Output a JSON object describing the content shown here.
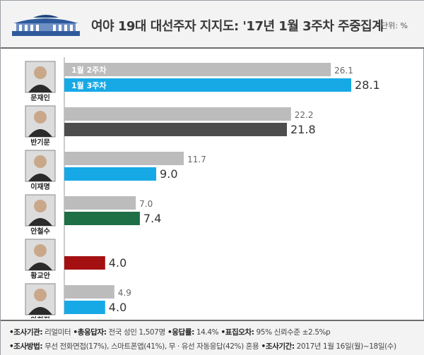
{
  "header": {
    "title": "여야 19대 대선주자 지지도: '17년 1월 3주차 주중집계",
    "unit": "단위: %"
  },
  "chart_data": {
    "type": "bar",
    "orientation": "horizontal",
    "categories": [
      "문재인",
      "반기문",
      "이재명",
      "안철수",
      "황교안",
      "안희정"
    ],
    "series": [
      {
        "name": "1월 2주차",
        "values": [
          26.1,
          22.2,
          11.7,
          7.0,
          null,
          4.9
        ],
        "color": "#bcbcbc"
      },
      {
        "name": "1월 3주차",
        "values": [
          28.1,
          21.8,
          9.0,
          7.4,
          4.0,
          4.0
        ]
      }
    ],
    "bar_colors_week3": [
      "#17a9e6",
      "#4d4d4d",
      "#17a9e6",
      "#1e6e46",
      "#a40f12",
      "#17a9e6"
    ],
    "xlim": [
      0,
      30
    ],
    "legend": "inside first bars"
  },
  "footer": {
    "line1": [
      {
        "label": "•조사기관:",
        "value": " 리얼미터"
      },
      {
        "label": " •총응답자:",
        "value": " 전국 성인 1,507명"
      },
      {
        "label": " •응답률:",
        "value": " 14.4%"
      },
      {
        "label": " •표집오차:",
        "value": " 95% 신뢰수준 ±2.5%p"
      }
    ],
    "line2": [
      {
        "label": "•조사방법:",
        "value": " 무선 전화면접(17%), 스마트폰앱(41%), 무 · 유선 자동응답(42%) 혼용"
      },
      {
        "label": " •조사기간:",
        "value": " 2017년 1월 16일(월)~18일(수)"
      }
    ]
  }
}
